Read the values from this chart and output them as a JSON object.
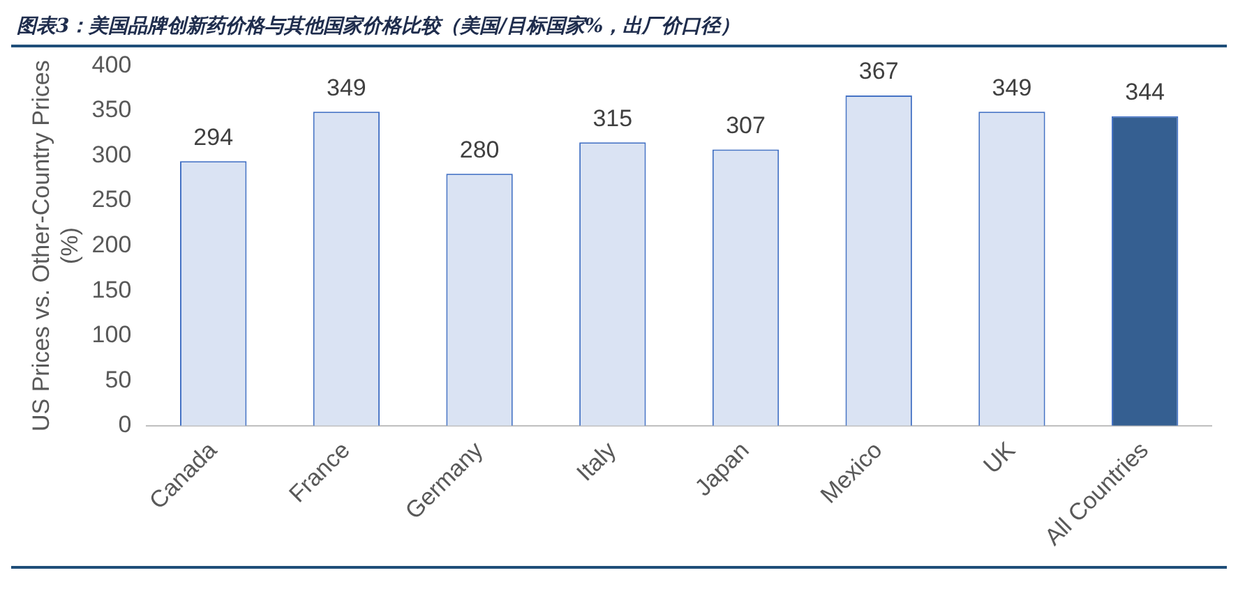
{
  "chart_data": {
    "type": "bar",
    "title": "图表3：美国品牌创新药价格与其他国家价格比较（美国/目标国家%，出厂价口径）",
    "ylabel": "US Prices vs. Other-Country Prices (%)",
    "categories": [
      "Canada",
      "France",
      "Germany",
      "Italy",
      "Japan",
      "Mexico",
      "UK",
      "All Countries"
    ],
    "values": [
      294,
      349,
      280,
      315,
      307,
      367,
      349,
      344
    ],
    "colors": [
      "#dae3f3",
      "#dae3f3",
      "#dae3f3",
      "#dae3f3",
      "#dae3f3",
      "#dae3f3",
      "#dae3f3",
      "#355f91"
    ],
    "ylim": [
      0,
      400
    ],
    "yticks": [
      0,
      50,
      100,
      150,
      200,
      250,
      300,
      350,
      400
    ],
    "grid": false,
    "data_labels": true,
    "legend": false
  }
}
